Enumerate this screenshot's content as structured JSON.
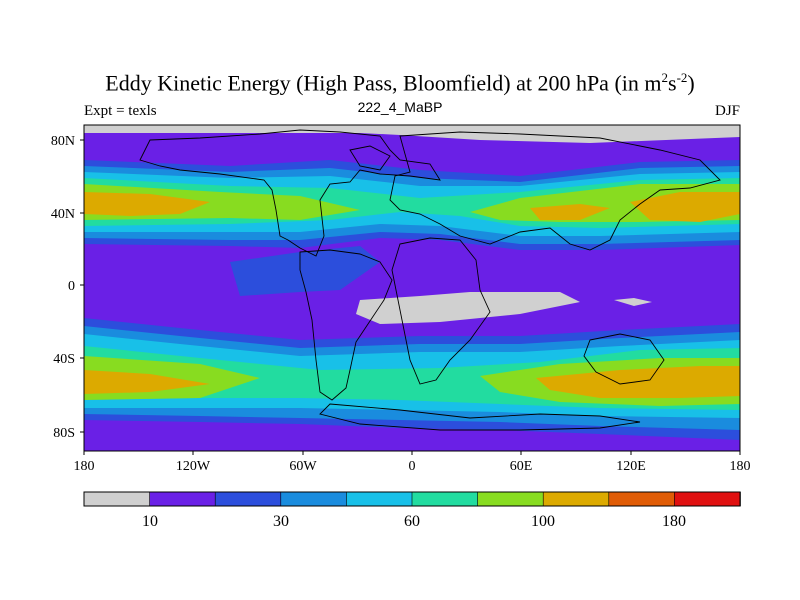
{
  "title_main": "Eddy Kinetic Energy (High Pass, Bloomfield) at 200 hPa (in m",
  "title_sup1": "2",
  "title_mid": "s",
  "title_sup2": "-2",
  "title_end": ")",
  "subtitle": "222_4_MaBP",
  "expt": "Expt = texls",
  "season": "DJF",
  "colors": {
    "gray": "#d0d0d0",
    "purple": "#6a20e6",
    "blue": "#2c4edc",
    "medblue": "#1a8cde",
    "cyan": "#18c0e8",
    "teal": "#22dca0",
    "lime": "#88dc20",
    "yellow": "#dcaa00",
    "orange": "#e05c06",
    "red": "#e01010"
  },
  "chart_data": {
    "type": "heatmap",
    "title": "Eddy Kinetic Energy (High Pass, Bloomfield) at 200 hPa (in m2s-2)",
    "projection": "cylindrical equidistant",
    "lon_range": [
      -180,
      180
    ],
    "lat_range": [
      -90,
      90
    ],
    "lat_ticks": [
      {
        "value": 80,
        "label": "80N"
      },
      {
        "value": 40,
        "label": "40N"
      },
      {
        "value": 0,
        "label": "0"
      },
      {
        "value": -40,
        "label": "40S"
      },
      {
        "value": -80,
        "label": "80S"
      }
    ],
    "lon_ticks": [
      {
        "value": -180,
        "label": "180"
      },
      {
        "value": -120,
        "label": "120W"
      },
      {
        "value": -60,
        "label": "60W"
      },
      {
        "value": 0,
        "label": "0"
      },
      {
        "value": 60,
        "label": "60E"
      },
      {
        "value": 120,
        "label": "120E"
      },
      {
        "value": 180,
        "label": "180"
      }
    ],
    "colorbar": {
      "colors": [
        "#d0d0d0",
        "#6a20e6",
        "#2c4edc",
        "#1a8cde",
        "#18c0e8",
        "#22dca0",
        "#88dc20",
        "#dcaa00",
        "#e05c06",
        "#e01010"
      ],
      "labels": [
        {
          "boundary": 1,
          "label": "10"
        },
        {
          "boundary": 3,
          "label": "30"
        },
        {
          "boundary": 5,
          "label": "60"
        },
        {
          "boundary": 7,
          "label": "100"
        },
        {
          "boundary": 9,
          "label": "180"
        }
      ]
    },
    "features": [
      {
        "name": "nh-storm-track-atlantic-pacific",
        "lon": [
          -180,
          -135
        ],
        "lat": 42,
        "level": "yellow"
      },
      {
        "name": "nh-storm-track-pacific",
        "lon": [
          70,
          180
        ],
        "lat": 40,
        "level": "yellow"
      },
      {
        "name": "sh-storm-track-west",
        "lon": [
          -180,
          -140
        ],
        "lat": -55,
        "level": "yellow"
      },
      {
        "name": "sh-storm-track-east",
        "lon": [
          70,
          180
        ],
        "lat": -52,
        "level": "yellow"
      },
      {
        "name": "tropical-minimum-atlantic-africa",
        "lon": [
          -25,
          50
        ],
        "lat": -10,
        "level": "gray"
      },
      {
        "name": "tropical-minimum-indian",
        "lon": [
          117,
          130
        ],
        "lat": -7,
        "level": "gray"
      },
      {
        "name": "arctic-minimum",
        "lon": [
          -160,
          180
        ],
        "lat": 87,
        "level": "gray"
      }
    ]
  }
}
